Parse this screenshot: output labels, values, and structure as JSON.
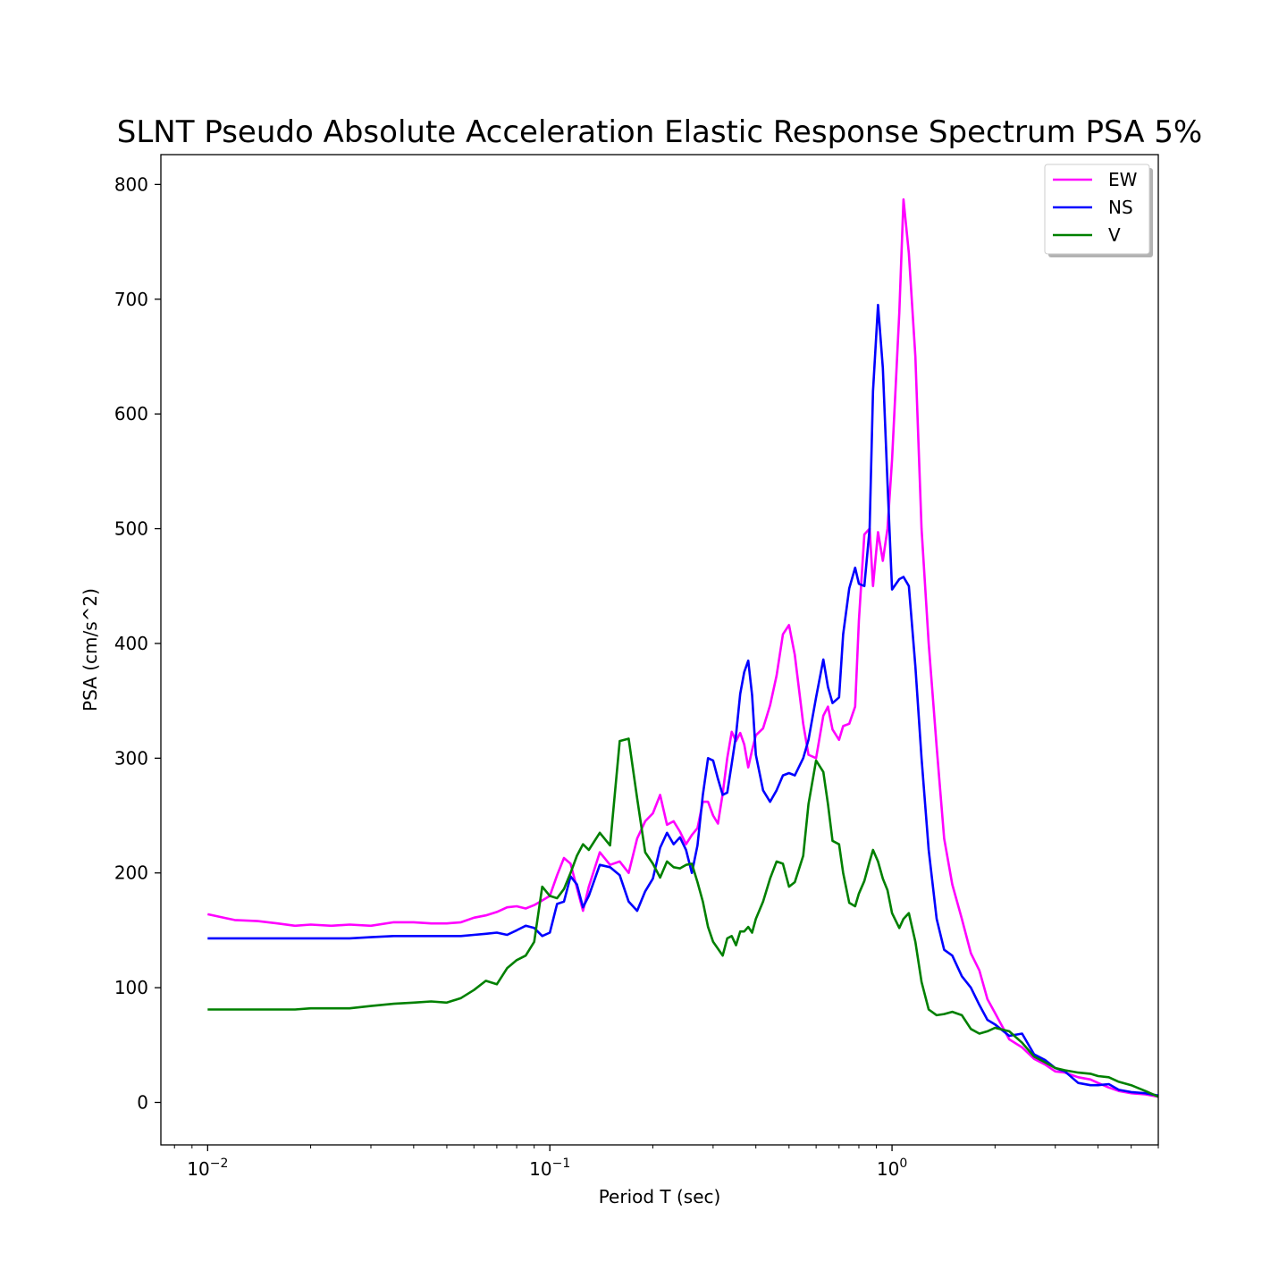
{
  "chart_data": {
    "type": "line",
    "title": "SLNT Pseudo Absolute Acceleration Elastic Response Spectrum PSA 5%",
    "xlabel": "Period T (sec)",
    "ylabel": "PSA (cm/s^2)",
    "xscale": "log",
    "xlim": [
      0.0073,
      6.0
    ],
    "ylim": [
      -37,
      826
    ],
    "xticks": [
      {
        "base": "10",
        "exp": "−2"
      },
      {
        "base": "10",
        "exp": "−1"
      },
      {
        "base": "10",
        "exp": "0"
      }
    ],
    "yticks": [
      "0",
      "100",
      "200",
      "300",
      "400",
      "500",
      "600",
      "700",
      "800"
    ],
    "legend_position": "top-right",
    "series": [
      {
        "name": "EW",
        "color": "#ff00ff",
        "points": [
          [
            0.01,
            164
          ],
          [
            0.012,
            159
          ],
          [
            0.014,
            158
          ],
          [
            0.016,
            156
          ],
          [
            0.018,
            154
          ],
          [
            0.02,
            155
          ],
          [
            0.023,
            154
          ],
          [
            0.026,
            155
          ],
          [
            0.03,
            154
          ],
          [
            0.035,
            157
          ],
          [
            0.04,
            157
          ],
          [
            0.045,
            156
          ],
          [
            0.05,
            156
          ],
          [
            0.055,
            157
          ],
          [
            0.06,
            161
          ],
          [
            0.065,
            163
          ],
          [
            0.07,
            166
          ],
          [
            0.075,
            170
          ],
          [
            0.08,
            171
          ],
          [
            0.085,
            169
          ],
          [
            0.09,
            172
          ],
          [
            0.095,
            176
          ],
          [
            0.1,
            180
          ],
          [
            0.105,
            198
          ],
          [
            0.11,
            213
          ],
          [
            0.115,
            208
          ],
          [
            0.12,
            187
          ],
          [
            0.125,
            167
          ],
          [
            0.13,
            188
          ],
          [
            0.14,
            218
          ],
          [
            0.15,
            207
          ],
          [
            0.16,
            210
          ],
          [
            0.17,
            200
          ],
          [
            0.18,
            230
          ],
          [
            0.19,
            245
          ],
          [
            0.2,
            252
          ],
          [
            0.21,
            268
          ],
          [
            0.22,
            242
          ],
          [
            0.23,
            245
          ],
          [
            0.24,
            236
          ],
          [
            0.25,
            225
          ],
          [
            0.26,
            233
          ],
          [
            0.27,
            239
          ],
          [
            0.28,
            262
          ],
          [
            0.29,
            262
          ],
          [
            0.3,
            250
          ],
          [
            0.31,
            243
          ],
          [
            0.32,
            269
          ],
          [
            0.33,
            300
          ],
          [
            0.34,
            323
          ],
          [
            0.35,
            315
          ],
          [
            0.36,
            322
          ],
          [
            0.37,
            312
          ],
          [
            0.38,
            292
          ],
          [
            0.39,
            307
          ],
          [
            0.4,
            320
          ],
          [
            0.42,
            326
          ],
          [
            0.44,
            346
          ],
          [
            0.46,
            372
          ],
          [
            0.48,
            408
          ],
          [
            0.5,
            416
          ],
          [
            0.52,
            390
          ],
          [
            0.55,
            330
          ],
          [
            0.57,
            303
          ],
          [
            0.6,
            300
          ],
          [
            0.63,
            337
          ],
          [
            0.65,
            345
          ],
          [
            0.67,
            325
          ],
          [
            0.7,
            316
          ],
          [
            0.72,
            328
          ],
          [
            0.75,
            330
          ],
          [
            0.78,
            345
          ],
          [
            0.8,
            420
          ],
          [
            0.83,
            495
          ],
          [
            0.86,
            500
          ],
          [
            0.88,
            450
          ],
          [
            0.91,
            497
          ],
          [
            0.94,
            472
          ],
          [
            0.97,
            500
          ],
          [
            1.0,
            560
          ],
          [
            1.05,
            688
          ],
          [
            1.08,
            787
          ],
          [
            1.12,
            740
          ],
          [
            1.17,
            650
          ],
          [
            1.22,
            500
          ],
          [
            1.28,
            400
          ],
          [
            1.35,
            310
          ],
          [
            1.42,
            230
          ],
          [
            1.5,
            190
          ],
          [
            1.6,
            160
          ],
          [
            1.7,
            130
          ],
          [
            1.8,
            115
          ],
          [
            1.9,
            90
          ],
          [
            2.0,
            78
          ],
          [
            2.2,
            55
          ],
          [
            2.4,
            48
          ],
          [
            2.6,
            38
          ],
          [
            2.8,
            33
          ],
          [
            3.0,
            27
          ],
          [
            3.2,
            26
          ],
          [
            3.5,
            22
          ],
          [
            3.8,
            20
          ],
          [
            4.0,
            17
          ],
          [
            4.3,
            13
          ],
          [
            4.6,
            10
          ],
          [
            5.0,
            8
          ],
          [
            5.5,
            7
          ],
          [
            6.0,
            5
          ]
        ]
      },
      {
        "name": "NS",
        "color": "#0000ff",
        "points": [
          [
            0.01,
            143
          ],
          [
            0.012,
            143
          ],
          [
            0.014,
            143
          ],
          [
            0.016,
            143
          ],
          [
            0.018,
            143
          ],
          [
            0.02,
            143
          ],
          [
            0.023,
            143
          ],
          [
            0.026,
            143
          ],
          [
            0.03,
            144
          ],
          [
            0.035,
            145
          ],
          [
            0.04,
            145
          ],
          [
            0.045,
            145
          ],
          [
            0.05,
            145
          ],
          [
            0.055,
            145
          ],
          [
            0.06,
            146
          ],
          [
            0.065,
            147
          ],
          [
            0.07,
            148
          ],
          [
            0.075,
            146
          ],
          [
            0.08,
            150
          ],
          [
            0.085,
            154
          ],
          [
            0.09,
            152
          ],
          [
            0.095,
            145
          ],
          [
            0.1,
            148
          ],
          [
            0.105,
            173
          ],
          [
            0.11,
            175
          ],
          [
            0.115,
            197
          ],
          [
            0.12,
            190
          ],
          [
            0.125,
            170
          ],
          [
            0.13,
            180
          ],
          [
            0.14,
            207
          ],
          [
            0.15,
            205
          ],
          [
            0.16,
            198
          ],
          [
            0.17,
            175
          ],
          [
            0.18,
            167
          ],
          [
            0.19,
            184
          ],
          [
            0.2,
            195
          ],
          [
            0.21,
            222
          ],
          [
            0.22,
            235
          ],
          [
            0.23,
            225
          ],
          [
            0.24,
            231
          ],
          [
            0.25,
            220
          ],
          [
            0.26,
            200
          ],
          [
            0.27,
            224
          ],
          [
            0.28,
            268
          ],
          [
            0.29,
            300
          ],
          [
            0.3,
            298
          ],
          [
            0.31,
            282
          ],
          [
            0.32,
            268
          ],
          [
            0.33,
            270
          ],
          [
            0.34,
            295
          ],
          [
            0.35,
            320
          ],
          [
            0.36,
            356
          ],
          [
            0.37,
            375
          ],
          [
            0.38,
            385
          ],
          [
            0.39,
            355
          ],
          [
            0.4,
            303
          ],
          [
            0.42,
            272
          ],
          [
            0.44,
            262
          ],
          [
            0.46,
            272
          ],
          [
            0.48,
            285
          ],
          [
            0.5,
            287
          ],
          [
            0.52,
            285
          ],
          [
            0.55,
            300
          ],
          [
            0.57,
            316
          ],
          [
            0.6,
            353
          ],
          [
            0.63,
            386
          ],
          [
            0.65,
            362
          ],
          [
            0.67,
            348
          ],
          [
            0.7,
            353
          ],
          [
            0.72,
            408
          ],
          [
            0.75,
            448
          ],
          [
            0.78,
            466
          ],
          [
            0.8,
            452
          ],
          [
            0.83,
            450
          ],
          [
            0.86,
            500
          ],
          [
            0.88,
            620
          ],
          [
            0.91,
            695
          ],
          [
            0.94,
            640
          ],
          [
            0.97,
            540
          ],
          [
            1.0,
            447
          ],
          [
            1.05,
            456
          ],
          [
            1.08,
            458
          ],
          [
            1.12,
            450
          ],
          [
            1.17,
            380
          ],
          [
            1.22,
            300
          ],
          [
            1.28,
            220
          ],
          [
            1.35,
            160
          ],
          [
            1.42,
            133
          ],
          [
            1.5,
            128
          ],
          [
            1.6,
            110
          ],
          [
            1.7,
            100
          ],
          [
            1.8,
            85
          ],
          [
            1.9,
            72
          ],
          [
            2.0,
            68
          ],
          [
            2.2,
            58
          ],
          [
            2.4,
            60
          ],
          [
            2.6,
            42
          ],
          [
            2.8,
            37
          ],
          [
            3.0,
            30
          ],
          [
            3.2,
            27
          ],
          [
            3.5,
            17
          ],
          [
            3.8,
            15
          ],
          [
            4.0,
            15
          ],
          [
            4.3,
            16
          ],
          [
            4.6,
            11
          ],
          [
            5.0,
            9
          ],
          [
            5.5,
            8
          ],
          [
            6.0,
            6
          ]
        ]
      },
      {
        "name": "V",
        "color": "#008000",
        "points": [
          [
            0.01,
            81
          ],
          [
            0.012,
            81
          ],
          [
            0.014,
            81
          ],
          [
            0.016,
            81
          ],
          [
            0.018,
            81
          ],
          [
            0.02,
            82
          ],
          [
            0.023,
            82
          ],
          [
            0.026,
            82
          ],
          [
            0.03,
            84
          ],
          [
            0.035,
            86
          ],
          [
            0.04,
            87
          ],
          [
            0.045,
            88
          ],
          [
            0.05,
            87
          ],
          [
            0.055,
            91
          ],
          [
            0.06,
            98
          ],
          [
            0.065,
            106
          ],
          [
            0.07,
            103
          ],
          [
            0.075,
            117
          ],
          [
            0.08,
            124
          ],
          [
            0.085,
            128
          ],
          [
            0.09,
            140
          ],
          [
            0.095,
            188
          ],
          [
            0.1,
            180
          ],
          [
            0.105,
            178
          ],
          [
            0.11,
            186
          ],
          [
            0.115,
            200
          ],
          [
            0.12,
            215
          ],
          [
            0.125,
            225
          ],
          [
            0.13,
            220
          ],
          [
            0.14,
            235
          ],
          [
            0.15,
            224
          ],
          [
            0.16,
            315
          ],
          [
            0.17,
            317
          ],
          [
            0.18,
            265
          ],
          [
            0.19,
            218
          ],
          [
            0.2,
            208
          ],
          [
            0.21,
            196
          ],
          [
            0.22,
            210
          ],
          [
            0.23,
            205
          ],
          [
            0.24,
            204
          ],
          [
            0.25,
            207
          ],
          [
            0.26,
            208
          ],
          [
            0.27,
            192
          ],
          [
            0.28,
            175
          ],
          [
            0.29,
            153
          ],
          [
            0.3,
            140
          ],
          [
            0.31,
            134
          ],
          [
            0.32,
            128
          ],
          [
            0.33,
            143
          ],
          [
            0.34,
            145
          ],
          [
            0.35,
            137
          ],
          [
            0.36,
            149
          ],
          [
            0.37,
            149
          ],
          [
            0.38,
            153
          ],
          [
            0.39,
            148
          ],
          [
            0.4,
            160
          ],
          [
            0.42,
            175
          ],
          [
            0.44,
            195
          ],
          [
            0.46,
            210
          ],
          [
            0.48,
            208
          ],
          [
            0.5,
            188
          ],
          [
            0.52,
            192
          ],
          [
            0.55,
            215
          ],
          [
            0.57,
            260
          ],
          [
            0.6,
            298
          ],
          [
            0.63,
            288
          ],
          [
            0.65,
            260
          ],
          [
            0.67,
            228
          ],
          [
            0.7,
            225
          ],
          [
            0.72,
            200
          ],
          [
            0.75,
            174
          ],
          [
            0.78,
            171
          ],
          [
            0.8,
            182
          ],
          [
            0.83,
            193
          ],
          [
            0.86,
            210
          ],
          [
            0.88,
            220
          ],
          [
            0.91,
            210
          ],
          [
            0.94,
            195
          ],
          [
            0.97,
            185
          ],
          [
            1.0,
            165
          ],
          [
            1.05,
            152
          ],
          [
            1.08,
            160
          ],
          [
            1.12,
            165
          ],
          [
            1.17,
            140
          ],
          [
            1.22,
            105
          ],
          [
            1.28,
            81
          ],
          [
            1.35,
            76
          ],
          [
            1.42,
            77
          ],
          [
            1.5,
            79
          ],
          [
            1.6,
            76
          ],
          [
            1.7,
            64
          ],
          [
            1.8,
            60
          ],
          [
            1.9,
            62
          ],
          [
            2.0,
            65
          ],
          [
            2.2,
            62
          ],
          [
            2.4,
            52
          ],
          [
            2.6,
            40
          ],
          [
            2.8,
            35
          ],
          [
            3.0,
            30
          ],
          [
            3.2,
            28
          ],
          [
            3.5,
            26
          ],
          [
            3.8,
            25
          ],
          [
            4.0,
            23
          ],
          [
            4.3,
            22
          ],
          [
            4.6,
            18
          ],
          [
            5.0,
            15
          ],
          [
            5.5,
            10
          ],
          [
            6.0,
            5
          ]
        ]
      }
    ]
  }
}
